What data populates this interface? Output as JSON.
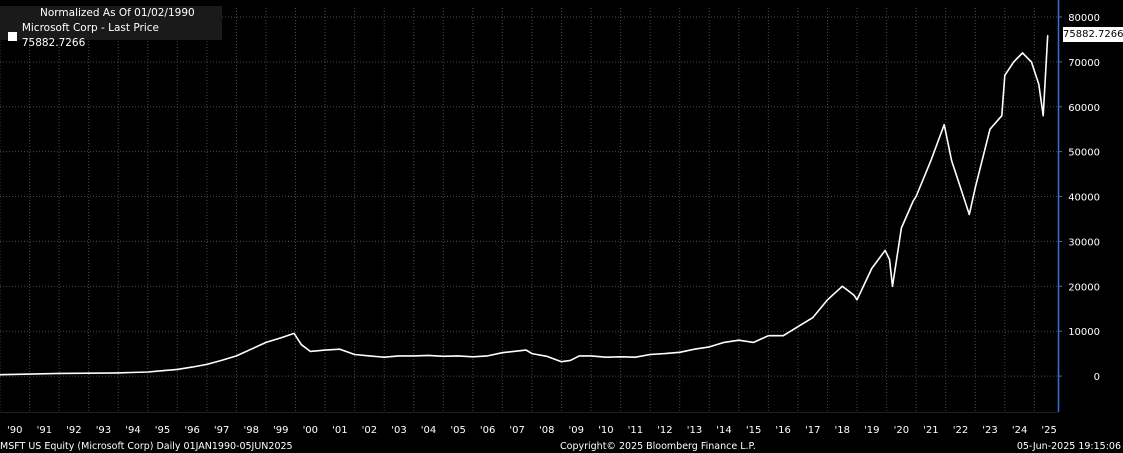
{
  "legend": {
    "title": "Normalized As Of 01/02/1990",
    "series_label": "Microsoft Corp - Last Price 75882.7266"
  },
  "last_value_label": "75882.7266",
  "footer": {
    "left": "MSFT US Equity (Microsoft Corp)  Daily 01JAN1990-05JUN2025",
    "center": "Copyright© 2025 Bloomberg Finance L.P.",
    "right": "05-Jun-2025 19:15:06"
  },
  "colors": {
    "background": "#000000",
    "line": "#ffffff",
    "axis": "#3a6fd8",
    "grid": "#4a4a4a"
  },
  "chart_data": {
    "type": "line",
    "title": "Normalized As Of 01/02/1990",
    "xlabel": "",
    "ylabel": "",
    "x_tick_labels": [
      "'90",
      "'91",
      "'92",
      "'93",
      "'94",
      "'95",
      "'96",
      "'97",
      "'98",
      "'99",
      "'00",
      "'01",
      "'02",
      "'03",
      "'04",
      "'05",
      "'06",
      "'07",
      "'08",
      "'09",
      "'10",
      "'11",
      "'12",
      "'13",
      "'14",
      "'15",
      "'16",
      "'17",
      "'18",
      "'19",
      "'20",
      "'21",
      "'22",
      "'23",
      "'24",
      "'25"
    ],
    "y_tick_labels": [
      "0",
      "10000",
      "20000",
      "30000",
      "40000",
      "50000",
      "60000",
      "70000",
      "80000"
    ],
    "ylim": [
      -8000,
      82000
    ],
    "xlim": [
      1990.0,
      2025.8
    ],
    "grid": true,
    "legend_position": "top-left",
    "series": [
      {
        "name": "Microsoft Corp - Last Price",
        "last_value": 75882.7266,
        "x": [
          1990.0,
          1991.0,
          1992.0,
          1993.0,
          1994.0,
          1995.0,
          1995.5,
          1996.0,
          1996.5,
          1997.0,
          1997.5,
          1998.0,
          1998.5,
          1999.0,
          1999.5,
          1999.95,
          2000.2,
          2000.5,
          2001.0,
          2001.5,
          2002.0,
          2002.5,
          2003.0,
          2003.5,
          2004.0,
          2004.5,
          2005.0,
          2005.5,
          2006.0,
          2006.5,
          2007.0,
          2007.8,
          2008.0,
          2008.5,
          2009.0,
          2009.3,
          2009.6,
          2010.0,
          2010.5,
          2011.0,
          2011.5,
          2012.0,
          2012.5,
          2013.0,
          2013.5,
          2014.0,
          2014.5,
          2015.0,
          2015.5,
          2016.0,
          2016.5,
          2017.0,
          2017.5,
          2018.0,
          2018.5,
          2018.9,
          2019.0,
          2019.5,
          2019.95,
          2020.1,
          2020.2,
          2020.5,
          2020.9,
          2021.0,
          2021.5,
          2021.95,
          2022.2,
          2022.5,
          2022.8,
          2023.0,
          2023.5,
          2023.9,
          2024.0,
          2024.3,
          2024.6,
          2024.9,
          2025.15,
          2025.3,
          2025.45
        ],
        "values": [
          300,
          450,
          600,
          650,
          700,
          900,
          1200,
          1500,
          2000,
          2600,
          3500,
          4500,
          6000,
          7500,
          8500,
          9500,
          7000,
          5500,
          5800,
          6000,
          4800,
          4500,
          4200,
          4500,
          4500,
          4600,
          4400,
          4500,
          4300,
          4500,
          5200,
          5800,
          5000,
          4400,
          3200,
          3500,
          4500,
          4500,
          4200,
          4300,
          4200,
          4800,
          5000,
          5300,
          6000,
          6500,
          7500,
          8000,
          7500,
          9000,
          9000,
          11000,
          13000,
          17000,
          20000,
          18000,
          17000,
          24000,
          28000,
          26000,
          20000,
          33000,
          39000,
          40000,
          48000,
          56000,
          48000,
          42000,
          36000,
          42000,
          55000,
          58000,
          67000,
          70000,
          72000,
          70000,
          65000,
          58000,
          75883
        ]
      }
    ]
  }
}
